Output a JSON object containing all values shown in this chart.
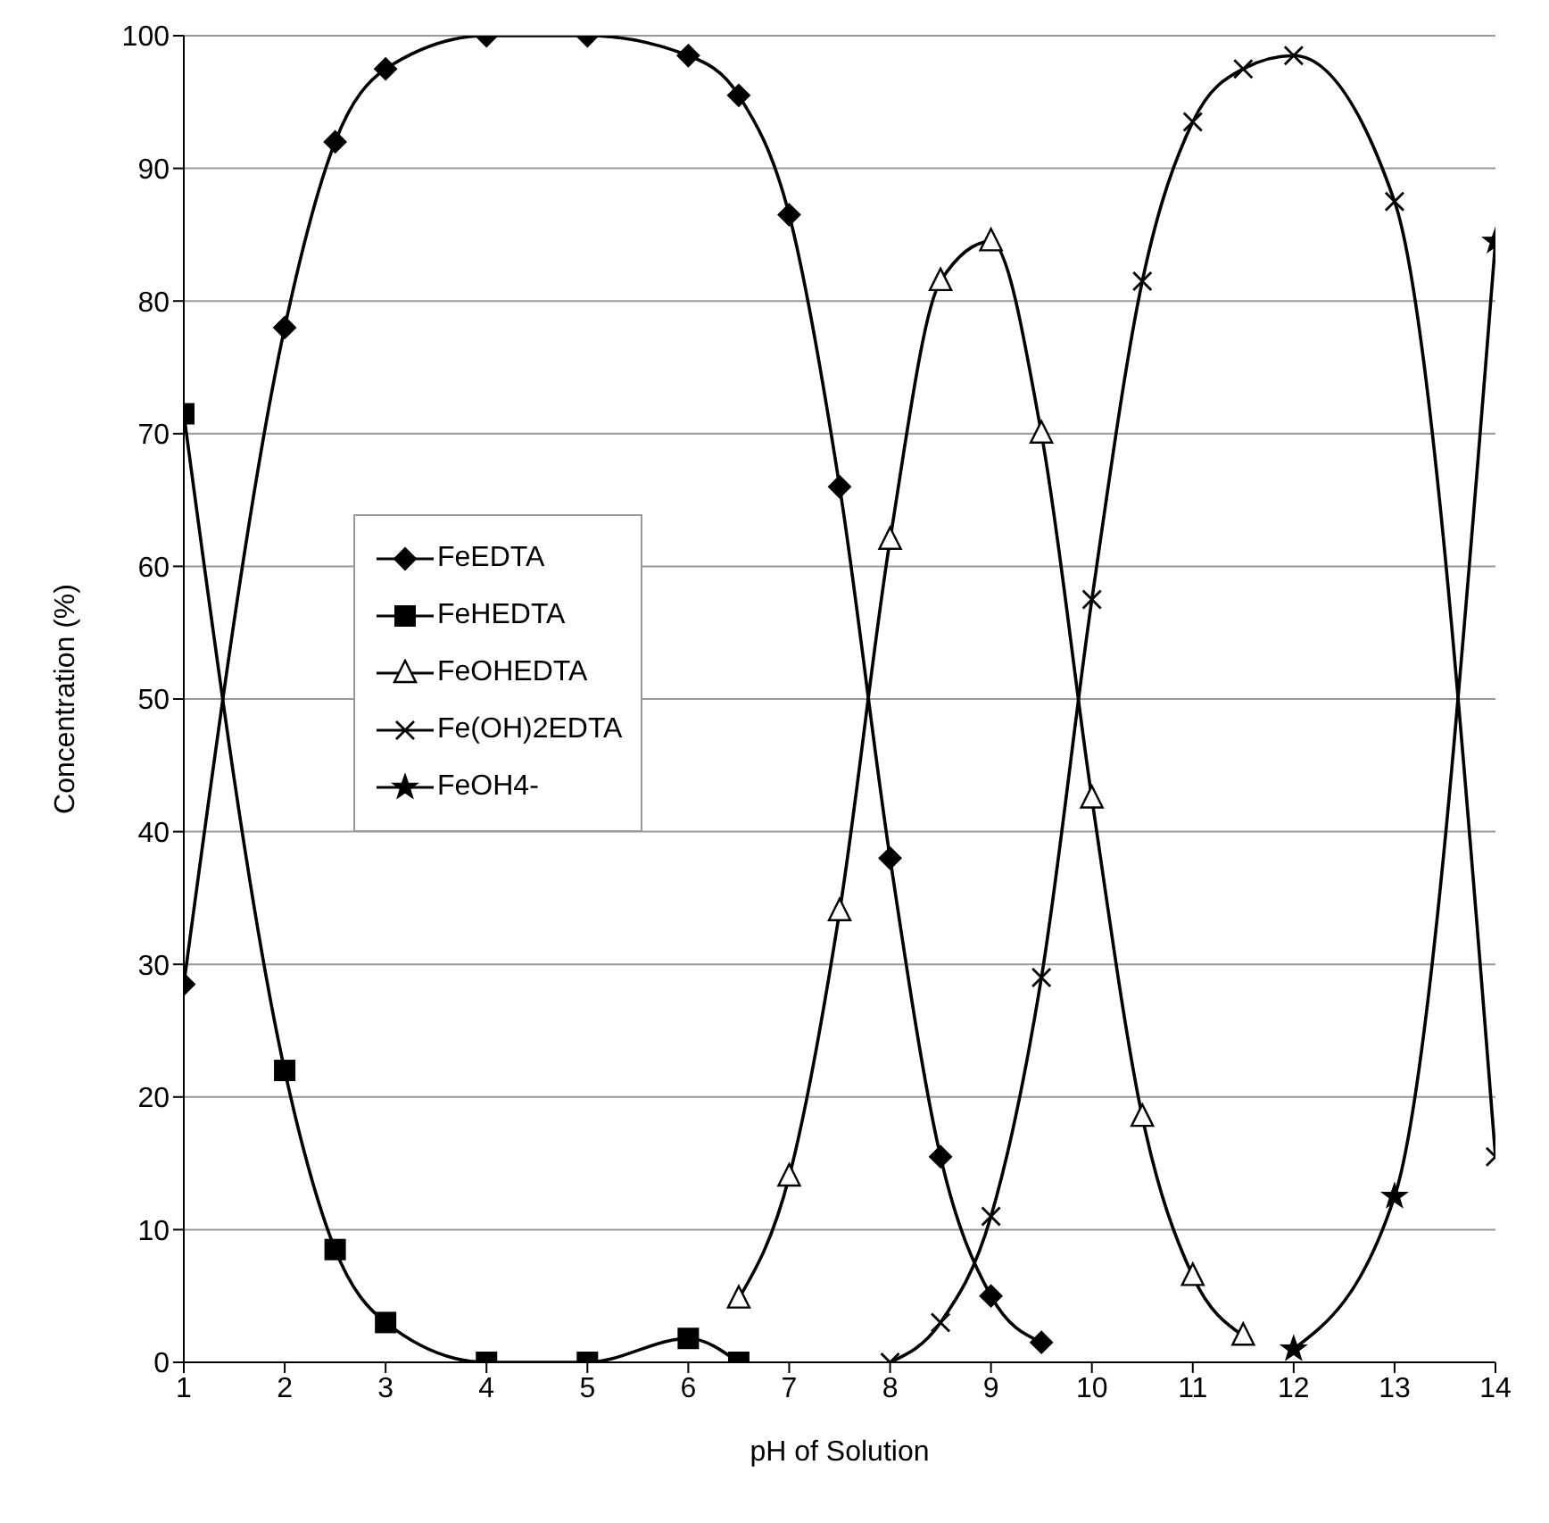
{
  "chart_data": {
    "type": "line",
    "xlabel": "pH of Solution",
    "ylabel": "Concentration (%)",
    "xlim": [
      1,
      14
    ],
    "xticks": [
      1,
      2,
      3,
      4,
      5,
      6,
      7,
      8,
      9,
      10,
      11,
      12,
      13,
      14
    ],
    "ylim": [
      0,
      100
    ],
    "yticks": [
      0,
      10,
      20,
      30,
      40,
      50,
      60,
      70,
      80,
      90,
      100
    ],
    "grid": "y",
    "legend": "left",
    "line_style": "solid",
    "series": [
      {
        "name": "FeEDTA",
        "color": "#000000",
        "marker": "diamond",
        "x": [
          1,
          2,
          2.5,
          3,
          4,
          5,
          6,
          6.5,
          7,
          7.5,
          8,
          8.5,
          9,
          9.5
        ],
        "values": [
          28.5,
          78,
          92,
          97.5,
          100,
          100,
          98.5,
          95.5,
          86.5,
          66,
          38,
          15.5,
          5,
          1.5
        ]
      },
      {
        "name": "FeHEDTA",
        "color": "#000000",
        "marker": "square",
        "x": [
          1,
          2,
          2.5,
          3,
          4,
          5,
          6,
          6.5
        ],
        "values": [
          71.5,
          22,
          8.5,
          3,
          0,
          0,
          1.8,
          0
        ]
      },
      {
        "name": "FeOHEDTA",
        "color": "#000000",
        "marker": "triangle",
        "x": [
          6.5,
          7,
          7.5,
          8,
          8.5,
          9,
          9.5,
          10,
          10.5,
          11,
          11.5
        ],
        "values": [
          4.8,
          14,
          34,
          62,
          81.5,
          84.5,
          70,
          42.5,
          18.5,
          6.5,
          2
        ]
      },
      {
        "name": "Fe(OH)2EDTA",
        "color": "#000000",
        "marker": "cross",
        "x": [
          8,
          8.5,
          9,
          9.5,
          10,
          10.5,
          11,
          11.5,
          12,
          13,
          14
        ],
        "values": [
          0,
          3,
          11,
          29,
          57.5,
          81.5,
          93.5,
          97.5,
          98.5,
          87.5,
          15.5
        ]
      },
      {
        "name": "FeOH4-",
        "color": "#000000",
        "marker": "star",
        "x": [
          12,
          13,
          14
        ],
        "values": [
          1,
          12.5,
          84.5
        ]
      }
    ]
  }
}
